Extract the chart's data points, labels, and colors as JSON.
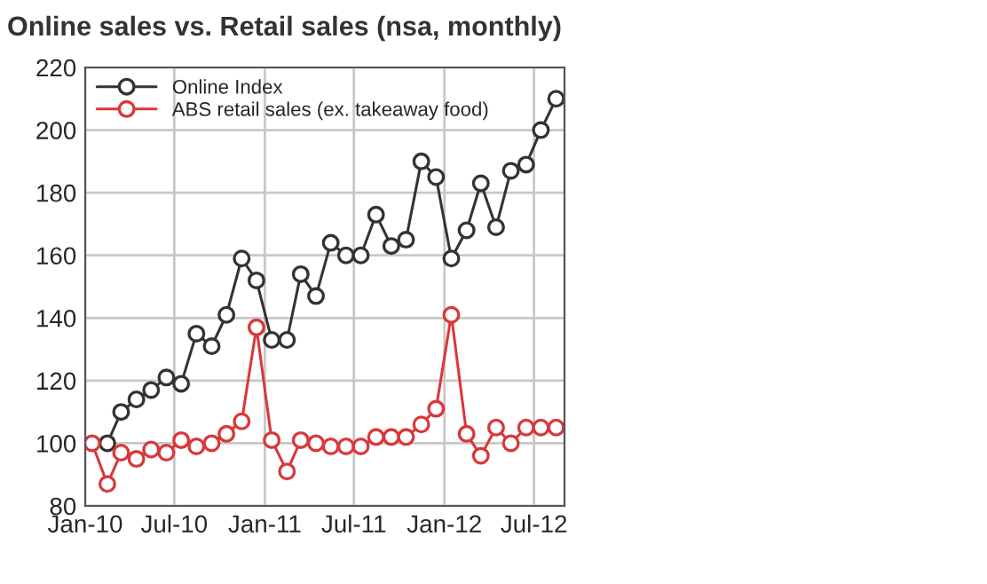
{
  "chart_data": {
    "type": "line",
    "title": "Online sales vs. Retail sales (nsa, monthly)",
    "x": [
      "2010-01-15",
      "2010-02-15",
      "2010-03-15",
      "2010-04-15",
      "2010-05-15",
      "2010-06-15",
      "2010-07-15",
      "2010-08-15",
      "2010-09-15",
      "2010-10-15",
      "2010-11-15",
      "2010-12-15",
      "2011-01-15",
      "2011-02-15",
      "2011-03-15",
      "2011-04-15",
      "2011-05-15",
      "2011-06-15",
      "2011-07-15",
      "2011-08-15",
      "2011-09-15",
      "2011-10-15",
      "2011-11-15",
      "2011-12-15",
      "2012-01-15",
      "2012-02-15",
      "2012-03-15",
      "2012-04-15",
      "2012-05-15",
      "2012-06-15",
      "2012-07-15",
      "2012-08-15"
    ],
    "series": [
      {
        "name": "Online Index",
        "color": "#333333",
        "values": [
          null,
          100,
          110,
          114,
          117,
          121,
          119,
          135,
          131,
          141,
          159,
          152,
          133,
          133,
          154,
          147,
          164,
          160,
          160,
          173,
          163,
          165,
          190,
          185,
          159,
          168,
          183,
          169,
          187,
          189,
          200,
          210
        ]
      },
      {
        "name": "ABS retail sales (ex. takeaway food)",
        "color": "#d9383a",
        "values": [
          100,
          87,
          97,
          95,
          98,
          97,
          101,
          99,
          100,
          103,
          107,
          137,
          101,
          91,
          101,
          100,
          99,
          99,
          99,
          102,
          102,
          102,
          106,
          111,
          141,
          103,
          96,
          105,
          100,
          105,
          105,
          105
        ]
      }
    ],
    "xlim": [
      "2010-01-01",
      "2012-09-01"
    ],
    "xticks": [
      {
        "value": "2010-01-01",
        "label": "Jan-10"
      },
      {
        "value": "2010-07-01",
        "label": "Jul-10"
      },
      {
        "value": "2011-01-01",
        "label": "Jan-11"
      },
      {
        "value": "2011-07-01",
        "label": "Jul-11"
      },
      {
        "value": "2012-01-01",
        "label": "Jan-12"
      },
      {
        "value": "2012-07-01",
        "label": "Jul-12"
      }
    ],
    "ylim": [
      80,
      220
    ],
    "yticks": [
      80,
      100,
      120,
      140,
      160,
      180,
      200,
      220
    ],
    "grid": true,
    "legend": "top left",
    "marker": "circle",
    "line_style": "solid"
  }
}
